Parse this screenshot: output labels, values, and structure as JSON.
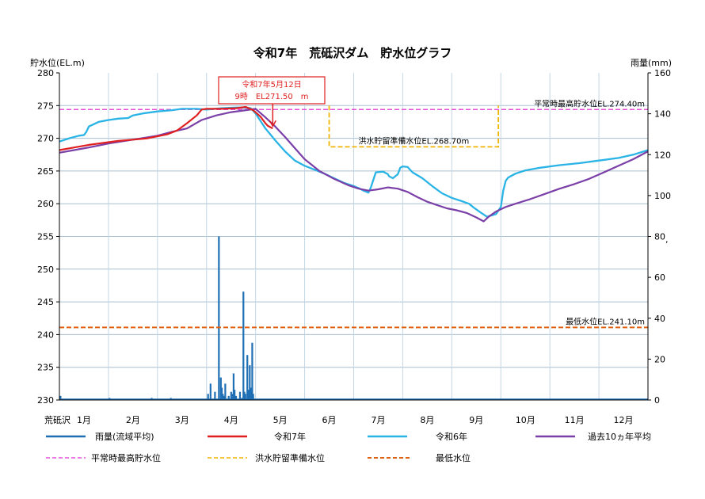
{
  "colors": {
    "rain": "#1f6fb5",
    "r7": "#e02020",
    "r6": "#2ab4e6",
    "avg": "#7b3fa8",
    "normal_high": "#e64fd8",
    "flood_level": "#f0b400",
    "min_level": "#e06010",
    "grid": "#a8bfd0"
  },
  "chart_data": {
    "type": "line",
    "title": "令和7年　荒砥沢ダム　貯水位グラフ",
    "ylabel_left": "貯水位(EL.m)",
    "ylabel_right": "雨量(mm)",
    "corner_label": "荒砥沢",
    "months": [
      "1月",
      "2月",
      "3月",
      "4月",
      "5月",
      "6月",
      "7月",
      "8月",
      "9月",
      "10月",
      "11月",
      "12月"
    ],
    "left_ylim": [
      230,
      280
    ],
    "left_ticks": [
      230,
      235,
      240,
      245,
      250,
      255,
      260,
      265,
      270,
      275,
      280
    ],
    "right_ylim": [
      0,
      160
    ],
    "right_ticks": [
      0,
      20,
      40,
      60,
      80,
      100,
      120,
      140,
      160
    ],
    "xlim_month": [
      0,
      12
    ],
    "series": [
      {
        "key": "r7",
        "name": "令和7年",
        "x": [
          0,
          0.3,
          0.6,
          0.9,
          1.2,
          1.5,
          1.8,
          2.0,
          2.2,
          2.4,
          2.6,
          2.8,
          2.9,
          3.0,
          3.3,
          3.6,
          3.8,
          3.95,
          4.1,
          4.2,
          4.25,
          4.35
        ],
        "y": [
          268.2,
          268.6,
          269.0,
          269.3,
          269.6,
          269.8,
          270.0,
          270.3,
          270.6,
          271.2,
          272.3,
          273.5,
          274.4,
          274.5,
          274.5,
          274.6,
          274.8,
          274.3,
          273.3,
          272.3,
          271.9,
          271.5
        ]
      },
      {
        "key": "r6",
        "name": "令和6年",
        "x": [
          0,
          0.2,
          0.4,
          0.5,
          0.55,
          0.6,
          0.8,
          1.0,
          1.2,
          1.4,
          1.5,
          1.7,
          2.0,
          2.3,
          2.5,
          2.8,
          3.0,
          3.3,
          3.6,
          3.8,
          3.9,
          4.0,
          4.2,
          4.4,
          4.6,
          4.8,
          5.0,
          5.2,
          5.4,
          5.6,
          5.8,
          6.0,
          6.1,
          6.2,
          6.3,
          6.32,
          6.35,
          6.45,
          6.6,
          6.7,
          6.72,
          6.8,
          6.9,
          6.95,
          7.0,
          7.1,
          7.2,
          7.4,
          7.6,
          7.8,
          8.0,
          8.2,
          8.35,
          8.45,
          8.6,
          8.72,
          8.8,
          8.9,
          9.0,
          9.05,
          9.1,
          9.15,
          9.3,
          9.5,
          9.8,
          10.2,
          10.6,
          11.0,
          11.4,
          11.7,
          12.0
        ],
        "y": [
          269.5,
          270.0,
          270.4,
          270.5,
          271.0,
          271.8,
          272.5,
          272.8,
          273.0,
          273.1,
          273.5,
          273.8,
          274.1,
          274.3,
          274.5,
          274.5,
          274.4,
          274.6,
          274.7,
          274.7,
          274.6,
          273.8,
          271.5,
          269.7,
          268.0,
          266.6,
          265.8,
          265.2,
          264.6,
          263.9,
          263.2,
          262.7,
          262.4,
          262.0,
          261.7,
          262.0,
          262.5,
          264.8,
          264.9,
          264.5,
          264.2,
          263.9,
          264.5,
          265.5,
          265.7,
          265.6,
          264.8,
          263.9,
          262.7,
          261.6,
          260.9,
          260.4,
          260.0,
          259.4,
          258.6,
          258.0,
          258.2,
          258.4,
          259.5,
          262.0,
          263.5,
          264.0,
          264.6,
          265.1,
          265.5,
          265.9,
          266.2,
          266.6,
          267.0,
          267.5,
          268.2
        ]
      },
      {
        "key": "avg",
        "name": "過去10ヵ年平均",
        "x": [
          0,
          0.3,
          0.6,
          1.0,
          1.5,
          2.0,
          2.3,
          2.6,
          2.9,
          3.2,
          3.5,
          3.8,
          4.0,
          4.2,
          4.4,
          4.6,
          4.8,
          5.0,
          5.3,
          5.6,
          5.9,
          6.1,
          6.3,
          6.5,
          6.7,
          6.9,
          7.1,
          7.3,
          7.5,
          7.7,
          7.9,
          8.1,
          8.3,
          8.5,
          8.65,
          8.75,
          8.9,
          9.1,
          9.3,
          9.6,
          9.9,
          10.2,
          10.5,
          10.8,
          11.1,
          11.4,
          11.7,
          12.0
        ],
        "y": [
          267.8,
          268.2,
          268.6,
          269.2,
          269.8,
          270.4,
          271.0,
          271.5,
          272.8,
          273.5,
          274.0,
          274.3,
          274.5,
          273.2,
          271.8,
          270.2,
          268.5,
          266.8,
          265.0,
          263.8,
          262.8,
          262.3,
          262.0,
          262.2,
          262.5,
          262.3,
          261.8,
          261.0,
          260.3,
          259.8,
          259.3,
          259.0,
          258.6,
          257.9,
          257.3,
          258.0,
          258.8,
          259.5,
          260.0,
          260.7,
          261.5,
          262.3,
          263.0,
          263.8,
          264.8,
          265.8,
          266.8,
          268.0
        ]
      }
    ],
    "rain": {
      "key": "rain",
      "name": "雨量(流域平均)",
      "unit_axis": "right",
      "x": [
        0.02,
        1.02,
        1.88,
        2.27,
        3.03,
        3.08,
        3.17,
        3.25,
        3.29,
        3.31,
        3.33,
        3.36,
        3.38,
        3.45,
        3.5,
        3.53,
        3.55,
        3.57,
        3.6,
        3.68,
        3.72,
        3.75,
        3.77,
        3.79,
        3.83,
        3.86,
        3.88,
        3.91,
        3.93,
        3.95
      ],
      "values": [
        2,
        1,
        1,
        1,
        3,
        8,
        4,
        80,
        11,
        6,
        3,
        2,
        8,
        2,
        4,
        3,
        13,
        5,
        2,
        4,
        1,
        53,
        4,
        3,
        22,
        5,
        17,
        6,
        28,
        3
      ]
    },
    "reference_lines": [
      {
        "key": "normal_high",
        "name": "平常時最高貯水位",
        "label": "平常時最高貯水位EL.274.40m",
        "value": 274.4
      },
      {
        "key": "min_level",
        "name": "最低水位",
        "label": "最低水位EL.241.10m",
        "value": 241.1
      }
    ],
    "flood_box": {
      "key": "flood_level",
      "name": "洪水貯留準備水位",
      "label": "洪水貯留準備水位EL.268.70m",
      "value": 268.7,
      "x_start": 5.5,
      "x_end": 8.95,
      "top": 275.0
    },
    "callout": {
      "line1": "令和7年5月12日",
      "line2": "9時　EL271.50　m",
      "x": 4.35,
      "y": 271.5
    },
    "right_tick_stray": ","
  }
}
